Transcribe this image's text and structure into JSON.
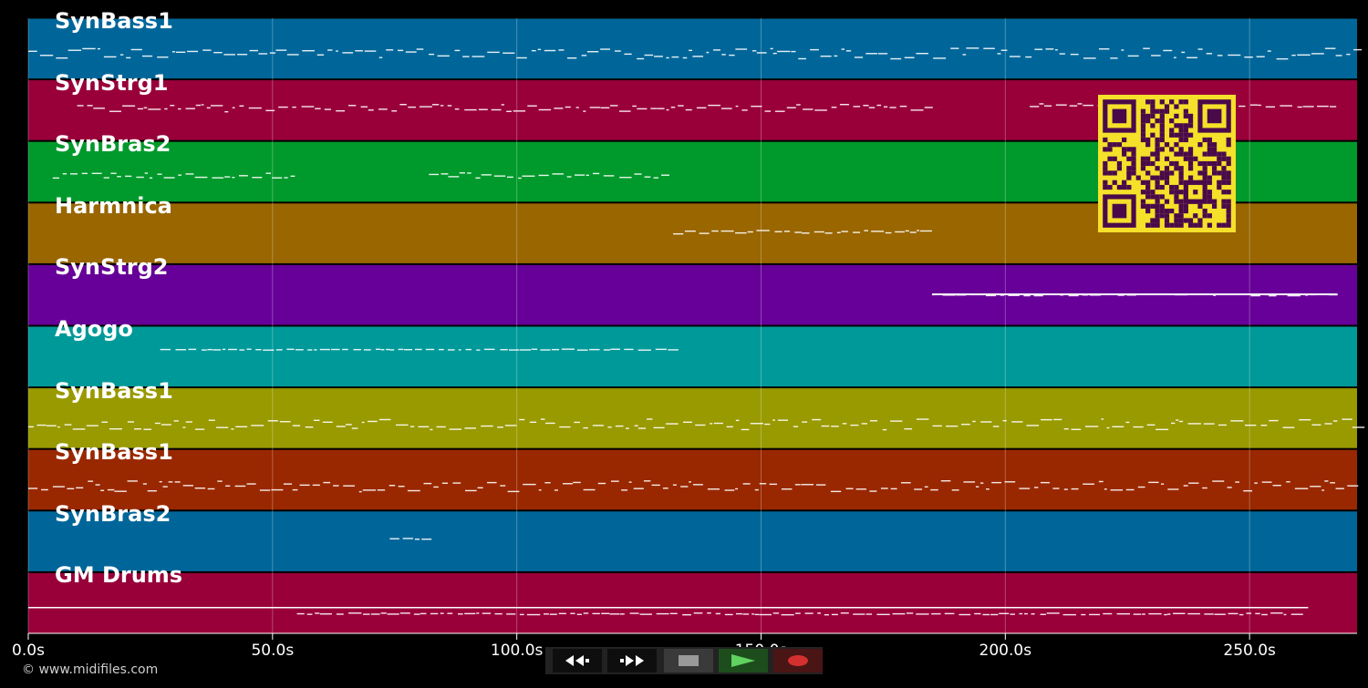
{
  "tracks": [
    {
      "name": "SynBass1",
      "color": "#006699"
    },
    {
      "name": "SynStrg1",
      "color": "#99003a"
    },
    {
      "name": "SynBras2",
      "color": "#00992b"
    },
    {
      "name": "Harmnica",
      "color": "#996600"
    },
    {
      "name": "SynStrg2",
      "color": "#660099"
    },
    {
      "name": "Agogo",
      "color": "#009999"
    },
    {
      "name": "SynBass1",
      "color": "#999900"
    },
    {
      "name": "SynBass1",
      "color": "#992800"
    },
    {
      "name": "SynBras2",
      "color": "#006699"
    },
    {
      "name": "GM Drums",
      "color": "#99003a"
    }
  ],
  "timeline": {
    "ticks": [
      {
        "value": 0,
        "label": "0.0s"
      },
      {
        "value": 50,
        "label": "50.0s"
      },
      {
        "value": 100,
        "label": "100.0s"
      },
      {
        "value": 150,
        "label": "150.0s"
      },
      {
        "value": 200,
        "label": "200.0s"
      },
      {
        "value": 250,
        "label": "250.0s"
      }
    ],
    "max_seconds": 272
  },
  "copyright": "© www.midifiles.com",
  "transport": {
    "rewind": {
      "icon": "rewind-icon"
    },
    "fast_forward": {
      "icon": "fast-forward-icon"
    },
    "stop": {
      "icon": "stop-icon"
    },
    "play": {
      "icon": "play-icon",
      "color": "#5fd25f"
    },
    "record": {
      "icon": "record-icon",
      "color": "#d43030"
    }
  },
  "qr_code": {
    "fg": "#4a0a4a",
    "bg": "#f5e02a"
  }
}
